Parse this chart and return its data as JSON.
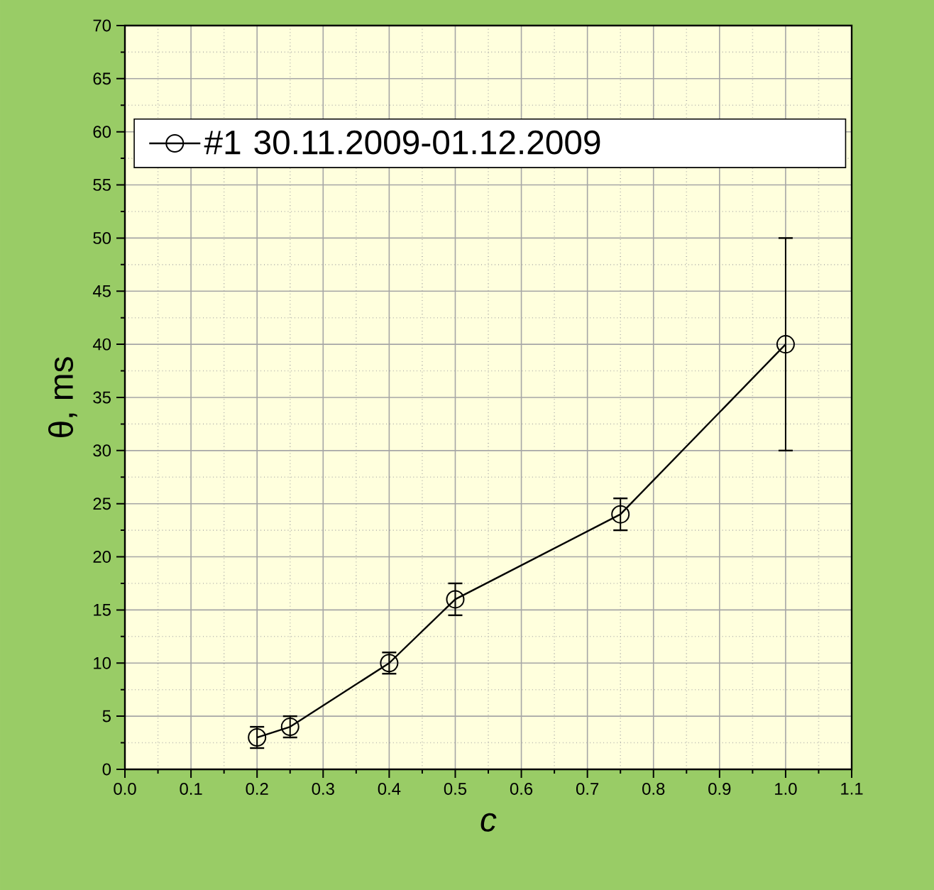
{
  "chart_data": {
    "type": "line",
    "xlabel": "*c*",
    "ylabel": "θ, ms",
    "x": [
      0.2,
      0.25,
      0.4,
      0.5,
      0.75,
      1.0
    ],
    "series": [
      {
        "name": "#1  30.11.2009-01.12.2009",
        "color": "#000000",
        "values": [
          3,
          4,
          10,
          16,
          24,
          40
        ],
        "errors": [
          1,
          1,
          1,
          1.5,
          1.5,
          10
        ]
      }
    ],
    "xlim": [
      0.0,
      1.1
    ],
    "xticks": [
      {
        "value": 0.0,
        "label": "0.0"
      },
      {
        "value": 0.1,
        "label": "0.1"
      },
      {
        "value": 0.2,
        "label": "0.2"
      },
      {
        "value": 0.3,
        "label": "0.3"
      },
      {
        "value": 0.4,
        "label": "0.4"
      },
      {
        "value": 0.5,
        "label": "0.5"
      },
      {
        "value": 0.6,
        "label": "0.6"
      },
      {
        "value": 0.7,
        "label": "0.7"
      },
      {
        "value": 0.8,
        "label": "0.8"
      },
      {
        "value": 0.9,
        "label": "0.9"
      },
      {
        "value": 1.0,
        "label": "1.0"
      },
      {
        "value": 1.1,
        "label": "1.1"
      }
    ],
    "ylim": [
      0,
      70
    ],
    "yticks": [
      0,
      5,
      10,
      15,
      20,
      25,
      30,
      35,
      40,
      45,
      50,
      55,
      60,
      65,
      70
    ],
    "grid": true,
    "legend": "top",
    "marker": "circle",
    "line_style": "solid"
  }
}
